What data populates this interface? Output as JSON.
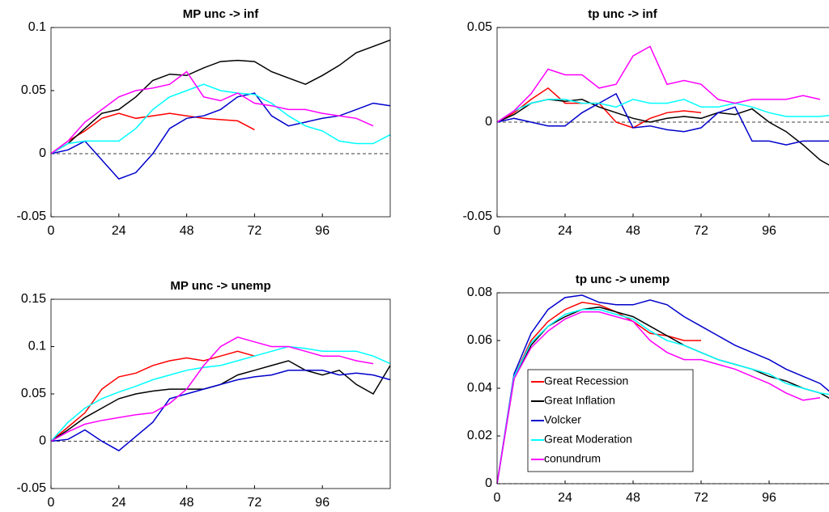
{
  "chart_data": [
    {
      "type": "line",
      "title": "MP unc -> inf",
      "x": [
        0,
        6,
        12,
        18,
        24,
        30,
        36,
        42,
        48,
        54,
        60,
        66,
        72,
        78,
        84,
        90,
        96,
        102,
        108,
        114,
        120
      ],
      "xlim": [
        0,
        120
      ],
      "xticks": [
        0,
        24,
        48,
        72,
        96
      ],
      "ylim": [
        -0.05,
        0.1
      ],
      "yticks": [
        -0.05,
        0,
        0.05,
        0.1
      ],
      "reference_line": 0,
      "series": [
        {
          "color": "#ff0000",
          "values": [
            0,
            0.01,
            0.018,
            0.028,
            0.032,
            0.028,
            0.03,
            0.032,
            0.03,
            0.028,
            0.027,
            0.026,
            0.019,
            null,
            null,
            null,
            null,
            null,
            null,
            null,
            null
          ]
        },
        {
          "color": "#000000",
          "values": [
            0,
            0.008,
            0.02,
            0.032,
            0.035,
            0.045,
            0.058,
            0.063,
            0.062,
            0.068,
            0.073,
            0.074,
            0.073,
            0.065,
            0.06,
            0.055,
            0.062,
            0.07,
            0.08,
            0.085,
            0.09
          ]
        },
        {
          "color": "#0000cc",
          "values": [
            0,
            0.003,
            0.01,
            -0.005,
            -0.02,
            -0.015,
            0,
            0.02,
            0.028,
            0.03,
            0.035,
            0.045,
            0.048,
            0.03,
            0.022,
            0.025,
            0.028,
            0.03,
            0.035,
            0.04,
            0.038
          ]
        },
        {
          "color": "#00ffff",
          "values": [
            0,
            0.008,
            0.01,
            0.01,
            0.01,
            0.02,
            0.035,
            0.045,
            0.05,
            0.055,
            0.05,
            0.048,
            0.047,
            0.04,
            0.03,
            0.022,
            0.018,
            0.01,
            0.008,
            0.008,
            0.015
          ]
        },
        {
          "color": "#ff00ff",
          "values": [
            0,
            0.01,
            0.025,
            0.035,
            0.045,
            0.05,
            0.052,
            0.055,
            0.065,
            0.045,
            0.042,
            0.048,
            0.04,
            0.038,
            0.035,
            0.035,
            0.032,
            0.03,
            0.028,
            0.022,
            null
          ]
        }
      ]
    },
    {
      "type": "line",
      "title": "tp unc -> inf",
      "x": [
        0,
        6,
        12,
        18,
        24,
        30,
        36,
        42,
        48,
        54,
        60,
        66,
        72,
        78,
        84,
        90,
        96,
        102,
        108,
        114,
        120
      ],
      "xlim": [
        0,
        120
      ],
      "xticks": [
        0,
        24,
        48,
        72,
        96
      ],
      "ylim": [
        -0.05,
        0.05
      ],
      "yticks": [
        -0.05,
        0,
        0.05
      ],
      "reference_line": 0,
      "series": [
        {
          "color": "#ff0000",
          "values": [
            0,
            0.005,
            0.012,
            0.018,
            0.01,
            0.01,
            0.01,
            0,
            -0.003,
            0.002,
            0.005,
            0.006,
            0.005,
            null,
            null,
            null,
            null,
            null,
            null,
            null,
            null
          ]
        },
        {
          "color": "#000000",
          "values": [
            0,
            0.004,
            0.01,
            0.012,
            0.011,
            0.012,
            0.008,
            0.005,
            0.002,
            0,
            0.002,
            0.003,
            0.002,
            0.005,
            0.004,
            0.007,
            0,
            -0.005,
            -0.012,
            -0.02,
            -0.025
          ]
        },
        {
          "color": "#0000cc",
          "values": [
            0,
            0.002,
            0,
            -0.002,
            -0.002,
            0.005,
            0.01,
            0.015,
            -0.003,
            -0.002,
            -0.004,
            -0.005,
            -0.003,
            0.005,
            0.008,
            -0.01,
            -0.01,
            -0.012,
            -0.01,
            -0.01,
            -0.01
          ]
        },
        {
          "color": "#00ffff",
          "values": [
            0,
            0.006,
            0.01,
            0.012,
            0.012,
            0.01,
            0.01,
            0.008,
            0.012,
            0.01,
            0.01,
            0.012,
            0.008,
            0.008,
            0.01,
            0.008,
            0.005,
            0.003,
            0.003,
            0.003,
            0.004
          ]
        },
        {
          "color": "#ff00ff",
          "values": [
            0,
            0.006,
            0.015,
            0.028,
            0.025,
            0.025,
            0.018,
            0.02,
            0.035,
            0.04,
            0.02,
            0.022,
            0.02,
            0.012,
            0.01,
            0.012,
            0.012,
            0.012,
            0.014,
            0.012,
            null
          ]
        }
      ]
    },
    {
      "type": "line",
      "title": "MP unc -> unemp",
      "x": [
        0,
        6,
        12,
        18,
        24,
        30,
        36,
        42,
        48,
        54,
        60,
        66,
        72,
        78,
        84,
        90,
        96,
        102,
        108,
        114,
        120
      ],
      "xlim": [
        0,
        120
      ],
      "xticks": [
        0,
        24,
        48,
        72,
        96
      ],
      "ylim": [
        -0.05,
        0.15
      ],
      "yticks": [
        -0.05,
        0,
        0.05,
        0.1,
        0.15
      ],
      "reference_line": 0,
      "series": [
        {
          "color": "#ff0000",
          "values": [
            0,
            0.015,
            0.03,
            0.055,
            0.068,
            0.072,
            0.08,
            0.085,
            0.088,
            0.085,
            0.09,
            0.095,
            0.09,
            null,
            null,
            null,
            null,
            null,
            null,
            null,
            null
          ]
        },
        {
          "color": "#000000",
          "values": [
            0,
            0.012,
            0.025,
            0.035,
            0.045,
            0.05,
            0.053,
            0.055,
            0.055,
            0.055,
            0.06,
            0.07,
            0.075,
            0.08,
            0.085,
            0.075,
            0.07,
            0.075,
            0.06,
            0.05,
            0.08
          ]
        },
        {
          "color": "#0000cc",
          "values": [
            0,
            0.002,
            0.012,
            0,
            -0.01,
            0.005,
            0.02,
            0.045,
            0.05,
            0.055,
            0.06,
            0.065,
            0.068,
            0.07,
            0.075,
            0.075,
            0.075,
            0.07,
            0.072,
            0.07,
            0.065
          ]
        },
        {
          "color": "#00ffff",
          "values": [
            0,
            0.02,
            0.035,
            0.045,
            0.052,
            0.058,
            0.065,
            0.07,
            0.075,
            0.078,
            0.08,
            0.085,
            0.09,
            0.095,
            0.1,
            0.098,
            0.095,
            0.095,
            0.095,
            0.09,
            0.082
          ]
        },
        {
          "color": "#ff00ff",
          "values": [
            0,
            0.01,
            0.018,
            0.022,
            0.025,
            0.028,
            0.03,
            0.04,
            0.055,
            0.08,
            0.1,
            0.11,
            0.105,
            0.1,
            0.1,
            0.095,
            0.09,
            0.09,
            0.085,
            0.082,
            null
          ]
        }
      ]
    },
    {
      "type": "line",
      "title": "tp unc -> unemp",
      "x": [
        0,
        6,
        12,
        18,
        24,
        30,
        36,
        42,
        48,
        54,
        60,
        66,
        72,
        78,
        84,
        90,
        96,
        102,
        108,
        114,
        120
      ],
      "xlim": [
        0,
        120
      ],
      "xticks": [
        0,
        24,
        48,
        72,
        96
      ],
      "ylim": [
        0,
        0.08
      ],
      "yticks": [
        0,
        0.02,
        0.04,
        0.06,
        0.08
      ],
      "reference_line": 0,
      "legend": "lower left",
      "series": [
        {
          "name": "Great Recession",
          "color": "#ff0000",
          "values": [
            0,
            0.045,
            0.06,
            0.068,
            0.073,
            0.076,
            0.075,
            0.072,
            0.068,
            0.063,
            0.062,
            0.06,
            0.06,
            null,
            null,
            null,
            null,
            null,
            null,
            null,
            null
          ]
        },
        {
          "name": "Great Inflation",
          "color": "#000000",
          "values": [
            0,
            0.044,
            0.058,
            0.066,
            0.07,
            0.073,
            0.074,
            0.072,
            0.07,
            0.066,
            0.062,
            0.058,
            0.055,
            0.052,
            0.05,
            0.048,
            0.045,
            0.043,
            0.04,
            0.038,
            0.034
          ]
        },
        {
          "name": "Volcker",
          "color": "#0000cc",
          "values": [
            0,
            0.046,
            0.063,
            0.073,
            0.078,
            0.079,
            0.076,
            0.075,
            0.075,
            0.077,
            0.075,
            0.07,
            0.066,
            0.062,
            0.058,
            0.055,
            0.052,
            0.048,
            0.045,
            0.042,
            0.036
          ]
        },
        {
          "name": "Great Moderation",
          "color": "#00ffff",
          "values": [
            0,
            0.045,
            0.059,
            0.066,
            0.071,
            0.073,
            0.073,
            0.071,
            0.069,
            0.064,
            0.06,
            0.058,
            0.055,
            0.052,
            0.05,
            0.048,
            0.046,
            0.042,
            0.04,
            0.038,
            0.037
          ]
        },
        {
          "name": "conundrum",
          "color": "#ff00ff",
          "values": [
            0,
            0.044,
            0.057,
            0.064,
            0.069,
            0.072,
            0.072,
            0.07,
            0.068,
            0.06,
            0.055,
            0.052,
            0.052,
            0.05,
            0.048,
            0.045,
            0.042,
            0.038,
            0.035,
            0.036,
            null
          ]
        }
      ]
    }
  ]
}
